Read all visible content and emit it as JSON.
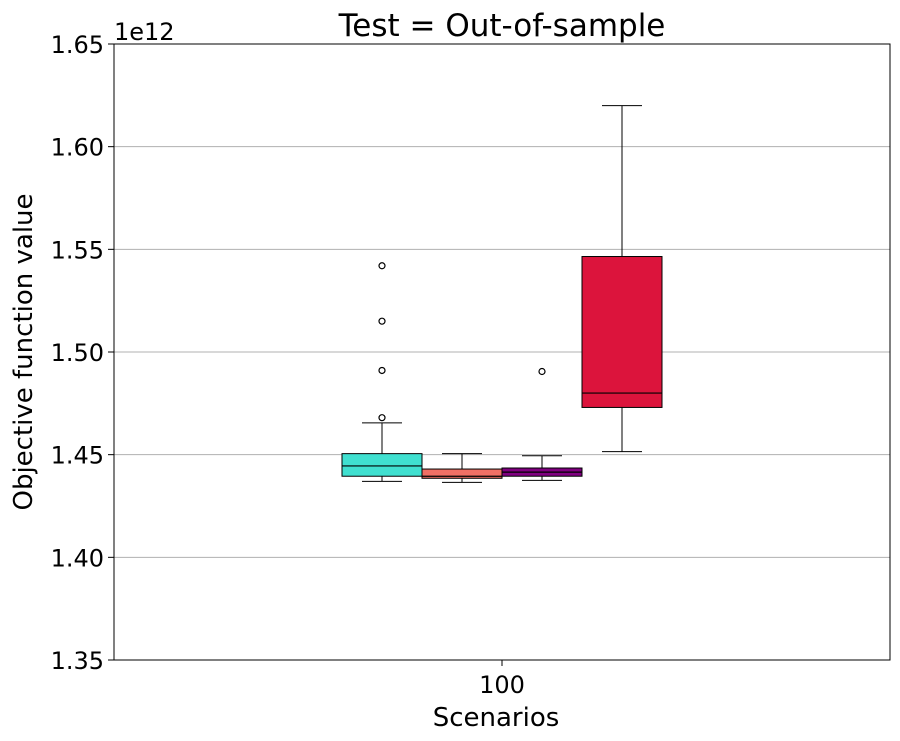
{
  "chart_data": {
    "type": "box",
    "title": "Test = Out-of-sample",
    "xlabel": "Scenarios",
    "ylabel": "Objective function value",
    "y_offset_label": "1e12",
    "categories": [
      "100"
    ],
    "ylim": [
      1.35,
      1.65
    ],
    "yticks": [
      "1.35",
      "1.40",
      "1.45",
      "1.50",
      "1.55",
      "1.60",
      "1.65"
    ],
    "grid": "y",
    "boxes": [
      {
        "color": "#40E0D0",
        "whisker_low": 1.437,
        "q1": 1.4395,
        "median": 1.4445,
        "q3": 1.4505,
        "whisker_high": 1.4655,
        "outliers": [
          1.468,
          1.491,
          1.515,
          1.542
        ]
      },
      {
        "color": "#F07065",
        "whisker_low": 1.4365,
        "q1": 1.4385,
        "median": 1.4395,
        "q3": 1.443,
        "whisker_high": 1.4505,
        "outliers": []
      },
      {
        "color": "#800080",
        "whisker_low": 1.4375,
        "q1": 1.4395,
        "median": 1.4415,
        "q3": 1.4435,
        "whisker_high": 1.4495,
        "outliers": [
          1.4905
        ]
      },
      {
        "color": "#DC143C",
        "whisker_low": 1.4515,
        "q1": 1.473,
        "median": 1.48,
        "q3": 1.5465,
        "whisker_high": 1.62,
        "outliers": []
      }
    ]
  }
}
